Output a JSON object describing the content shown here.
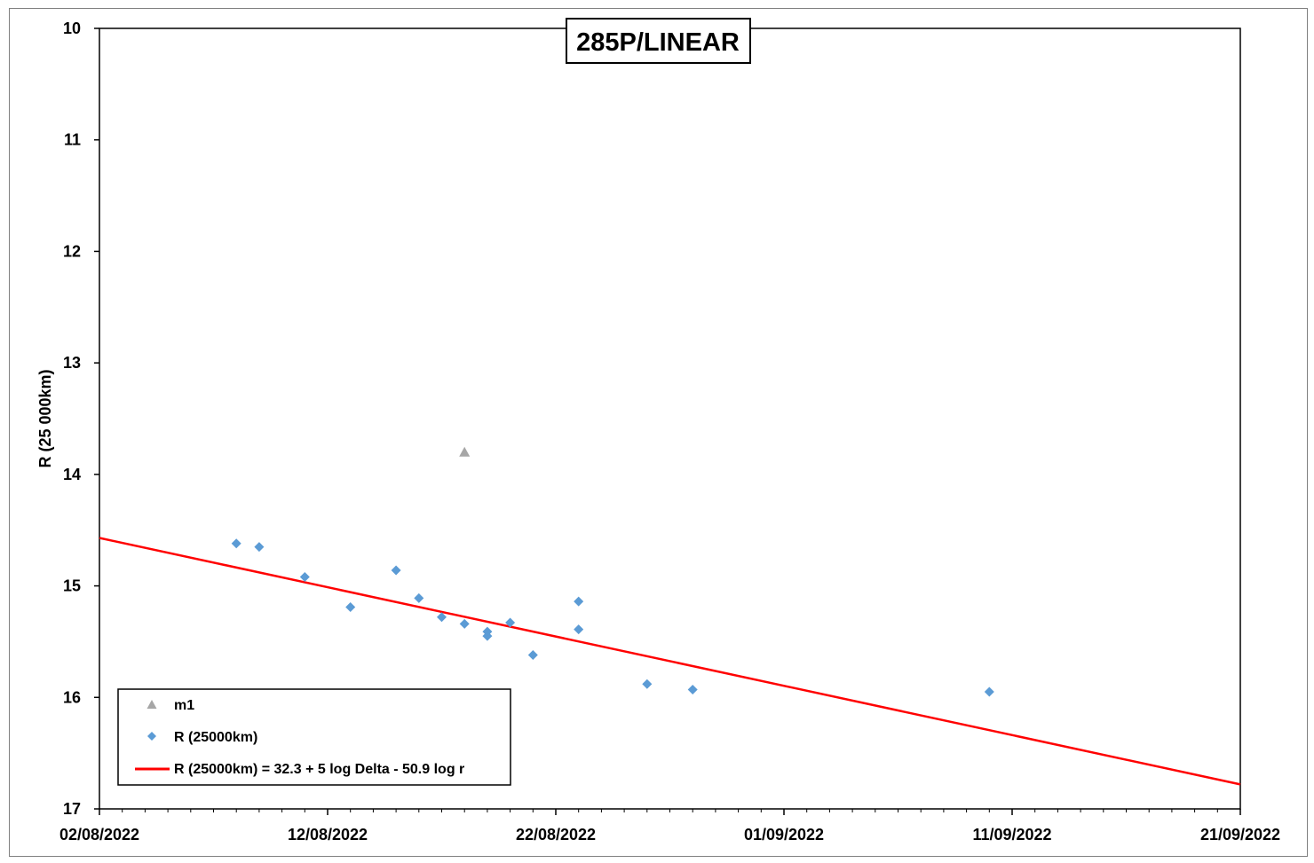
{
  "chart_data": {
    "type": "scatter",
    "title": "285P/LINEAR",
    "xlabel": "",
    "ylabel": "R (25 000km)",
    "x_tick_labels": [
      "02/08/2022",
      "12/08/2022",
      "22/08/2022",
      "01/09/2022",
      "11/09/2022",
      "21/09/2022"
    ],
    "xlim": [
      "2022-08-02",
      "2022-09-21"
    ],
    "ylim": [
      17,
      10
    ],
    "y_inverted": true,
    "y_ticks": [
      10,
      11,
      12,
      13,
      14,
      15,
      16,
      17
    ],
    "grid": false,
    "legend_position": "bottom-left",
    "colors": {
      "m1": "#a6a6a6",
      "R": "#5b9bd5",
      "fit": "#ff0000"
    },
    "series": [
      {
        "name": "m1",
        "marker": "triangle",
        "points": [
          {
            "x": "2022-08-18",
            "y": 13.8
          }
        ]
      },
      {
        "name": "R (25000km)",
        "marker": "diamond",
        "points": [
          {
            "x": "2022-08-08",
            "y": 14.62
          },
          {
            "x": "2022-08-09",
            "y": 14.65
          },
          {
            "x": "2022-08-11",
            "y": 14.92
          },
          {
            "x": "2022-08-13",
            "y": 15.19
          },
          {
            "x": "2022-08-15",
            "y": 14.86
          },
          {
            "x": "2022-08-16",
            "y": 15.11
          },
          {
            "x": "2022-08-17",
            "y": 15.28
          },
          {
            "x": "2022-08-18",
            "y": 15.34
          },
          {
            "x": "2022-08-19",
            "y": 15.41
          },
          {
            "x": "2022-08-19",
            "y": 15.45
          },
          {
            "x": "2022-08-20",
            "y": 15.33
          },
          {
            "x": "2022-08-21",
            "y": 15.62
          },
          {
            "x": "2022-08-23",
            "y": 15.14
          },
          {
            "x": "2022-08-23",
            "y": 15.39
          },
          {
            "x": "2022-08-26",
            "y": 15.88
          },
          {
            "x": "2022-08-28",
            "y": 15.93
          },
          {
            "x": "2022-09-10",
            "y": 15.95
          }
        ]
      },
      {
        "name": "R (25000km) = 32.3 + 5 log Delta - 50.9 log r",
        "type": "line",
        "points": [
          {
            "x": "2022-08-02",
            "y": 14.57
          },
          {
            "x": "2022-09-21",
            "y": 16.78
          }
        ]
      }
    ]
  }
}
